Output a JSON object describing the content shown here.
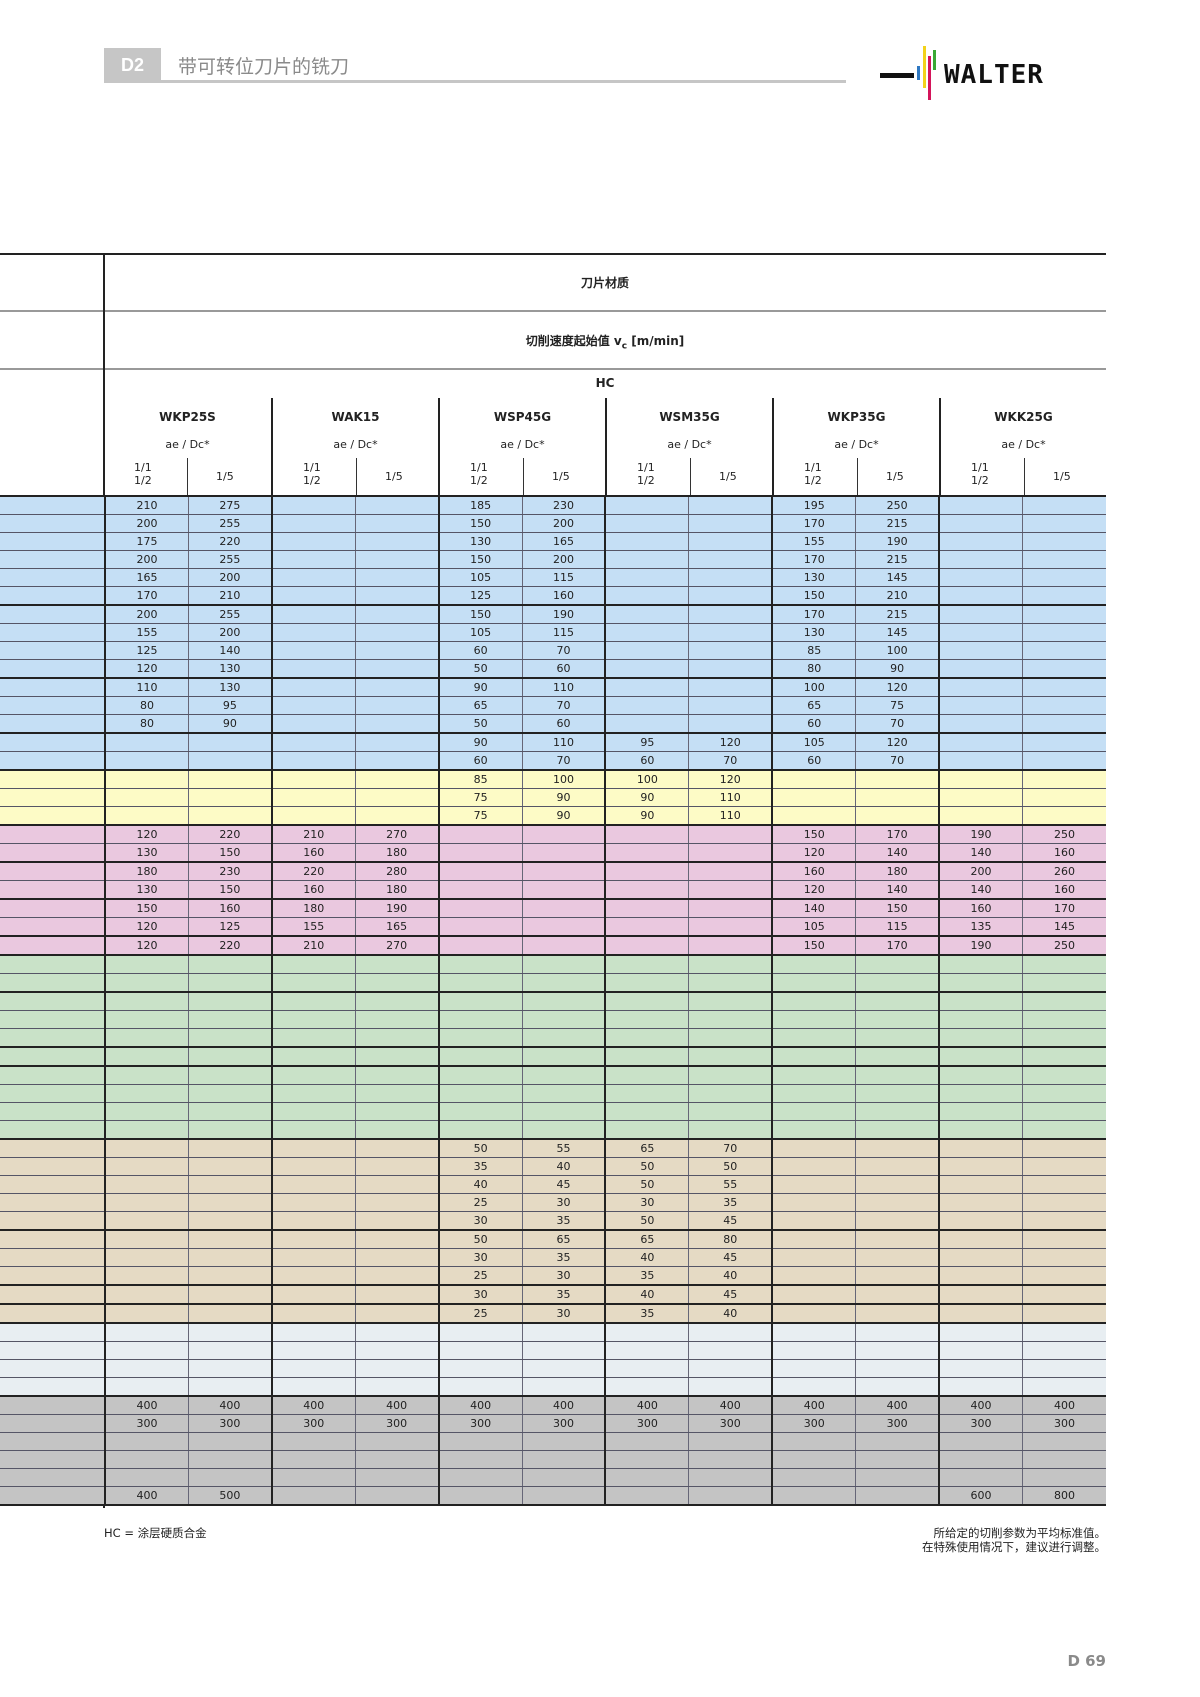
{
  "header": {
    "section": "D2",
    "title": "带可转位刀片的铣刀",
    "logo_text": "WALTER"
  },
  "table": {
    "header_material": "刀片材质",
    "header_speed": "切削速度起始值 vc [m/min]",
    "header_speed_main": "切削速度起始值 v",
    "header_speed_sub": "c",
    "header_speed_unit": " [m/min]",
    "hc": "HC",
    "ratio_label": "ae / Dc*",
    "sub_col_1": [
      "1/1",
      "1/2"
    ],
    "sub_col_2": "1/5",
    "grades": [
      "WKP25S",
      "WAK15",
      "WSP45G",
      "WSM35G",
      "WKP35G",
      "WKK25G"
    ],
    "colors": {
      "blue": "#c5dff5",
      "yellow": "#fdfbc6",
      "pink": "#eac8df",
      "green": "#c9e2c8",
      "tan": "#e5dac4",
      "light": "#e8eef2",
      "gray": "#c4c4c4"
    },
    "groups": [
      {
        "color": "blue",
        "rows": [
          [
            "210",
            "275",
            "",
            "",
            "185",
            "230",
            "",
            "",
            "195",
            "250",
            "",
            ""
          ],
          [
            "200",
            "255",
            "",
            "",
            "150",
            "200",
            "",
            "",
            "170",
            "215",
            "",
            ""
          ],
          [
            "175",
            "220",
            "",
            "",
            "130",
            "165",
            "",
            "",
            "155",
            "190",
            "",
            ""
          ],
          [
            "200",
            "255",
            "",
            "",
            "150",
            "200",
            "",
            "",
            "170",
            "215",
            "",
            ""
          ],
          [
            "165",
            "200",
            "",
            "",
            "105",
            "115",
            "",
            "",
            "130",
            "145",
            "",
            ""
          ],
          [
            "170",
            "210",
            "",
            "",
            "125",
            "160",
            "",
            "",
            "150",
            "210",
            "",
            ""
          ],
          [
            "200",
            "255",
            "",
            "",
            "150",
            "190",
            "",
            "",
            "170",
            "215",
            "",
            ""
          ],
          [
            "155",
            "200",
            "",
            "",
            "105",
            "115",
            "",
            "",
            "130",
            "145",
            "",
            ""
          ],
          [
            "125",
            "140",
            "",
            "",
            "60",
            "70",
            "",
            "",
            "85",
            "100",
            "",
            ""
          ],
          [
            "120",
            "130",
            "",
            "",
            "50",
            "60",
            "",
            "",
            "80",
            "90",
            "",
            ""
          ],
          [
            "110",
            "130",
            "",
            "",
            "90",
            "110",
            "",
            "",
            "100",
            "120",
            "",
            ""
          ],
          [
            "80",
            "95",
            "",
            "",
            "65",
            "70",
            "",
            "",
            "65",
            "75",
            "",
            ""
          ],
          [
            "80",
            "90",
            "",
            "",
            "50",
            "60",
            "",
            "",
            "60",
            "70",
            "",
            ""
          ],
          [
            "",
            "",
            "",
            "",
            "90",
            "110",
            "95",
            "120",
            "105",
            "120",
            "",
            ""
          ],
          [
            "",
            "",
            "",
            "",
            "60",
            "70",
            "60",
            "70",
            "60",
            "70",
            "",
            ""
          ]
        ]
      },
      {
        "color": "yellow",
        "rows": [
          [
            "",
            "",
            "",
            "",
            "85",
            "100",
            "100",
            "120",
            "",
            "",
            "",
            ""
          ],
          [
            "",
            "",
            "",
            "",
            "75",
            "90",
            "90",
            "110",
            "",
            "",
            "",
            ""
          ],
          [
            "",
            "",
            "",
            "",
            "75",
            "90",
            "90",
            "110",
            "",
            "",
            "",
            ""
          ]
        ]
      },
      {
        "color": "pink",
        "rows": [
          [
            "120",
            "220",
            "210",
            "270",
            "",
            "",
            "",
            "",
            "150",
            "170",
            "190",
            "250"
          ],
          [
            "130",
            "150",
            "160",
            "180",
            "",
            "",
            "",
            "",
            "120",
            "140",
            "140",
            "160"
          ],
          [
            "180",
            "230",
            "220",
            "280",
            "",
            "",
            "",
            "",
            "160",
            "180",
            "200",
            "260"
          ],
          [
            "130",
            "150",
            "160",
            "180",
            "",
            "",
            "",
            "",
            "120",
            "140",
            "140",
            "160"
          ],
          [
            "150",
            "160",
            "180",
            "190",
            "",
            "",
            "",
            "",
            "140",
            "150",
            "160",
            "170"
          ],
          [
            "120",
            "125",
            "155",
            "165",
            "",
            "",
            "",
            "",
            "105",
            "115",
            "135",
            "145"
          ],
          [
            "120",
            "220",
            "210",
            "270",
            "",
            "",
            "",
            "",
            "150",
            "170",
            "190",
            "250"
          ]
        ]
      },
      {
        "color": "green",
        "rows": [
          [
            "",
            "",
            "",
            "",
            "",
            "",
            "",
            "",
            "",
            "",
            "",
            ""
          ],
          [
            "",
            "",
            "",
            "",
            "",
            "",
            "",
            "",
            "",
            "",
            "",
            ""
          ],
          [
            "",
            "",
            "",
            "",
            "",
            "",
            "",
            "",
            "",
            "",
            "",
            ""
          ],
          [
            "",
            "",
            "",
            "",
            "",
            "",
            "",
            "",
            "",
            "",
            "",
            ""
          ],
          [
            "",
            "",
            "",
            "",
            "",
            "",
            "",
            "",
            "",
            "",
            "",
            ""
          ],
          [
            "",
            "",
            "",
            "",
            "",
            "",
            "",
            "",
            "",
            "",
            "",
            ""
          ],
          [
            "",
            "",
            "",
            "",
            "",
            "",
            "",
            "",
            "",
            "",
            "",
            ""
          ],
          [
            "",
            "",
            "",
            "",
            "",
            "",
            "",
            "",
            "",
            "",
            "",
            ""
          ],
          [
            "",
            "",
            "",
            "",
            "",
            "",
            "",
            "",
            "",
            "",
            "",
            ""
          ],
          [
            "",
            "",
            "",
            "",
            "",
            "",
            "",
            "",
            "",
            "",
            "",
            ""
          ]
        ]
      },
      {
        "color": "tan",
        "rows": [
          [
            "",
            "",
            "",
            "",
            "50",
            "55",
            "65",
            "70",
            "",
            "",
            "",
            ""
          ],
          [
            "",
            "",
            "",
            "",
            "35",
            "40",
            "50",
            "50",
            "",
            "",
            "",
            ""
          ],
          [
            "",
            "",
            "",
            "",
            "40",
            "45",
            "50",
            "55",
            "",
            "",
            "",
            ""
          ],
          [
            "",
            "",
            "",
            "",
            "25",
            "30",
            "30",
            "35",
            "",
            "",
            "",
            ""
          ],
          [
            "",
            "",
            "",
            "",
            "30",
            "35",
            "50",
            "45",
            "",
            "",
            "",
            ""
          ],
          [
            "",
            "",
            "",
            "",
            "50",
            "65",
            "65",
            "80",
            "",
            "",
            "",
            ""
          ],
          [
            "",
            "",
            "",
            "",
            "30",
            "35",
            "40",
            "45",
            "",
            "",
            "",
            ""
          ],
          [
            "",
            "",
            "",
            "",
            "25",
            "30",
            "35",
            "40",
            "",
            "",
            "",
            ""
          ],
          [
            "",
            "",
            "",
            "",
            "30",
            "35",
            "40",
            "45",
            "",
            "",
            "",
            ""
          ],
          [
            "",
            "",
            "",
            "",
            "25",
            "30",
            "35",
            "40",
            "",
            "",
            "",
            ""
          ]
        ]
      },
      {
        "color": "light",
        "rows": [
          [
            "",
            "",
            "",
            "",
            "",
            "",
            "",
            "",
            "",
            "",
            "",
            ""
          ],
          [
            "",
            "",
            "",
            "",
            "",
            "",
            "",
            "",
            "",
            "",
            "",
            ""
          ],
          [
            "",
            "",
            "",
            "",
            "",
            "",
            "",
            "",
            "",
            "",
            "",
            ""
          ],
          [
            "",
            "",
            "",
            "",
            "",
            "",
            "",
            "",
            "",
            "",
            "",
            ""
          ]
        ]
      },
      {
        "color": "gray",
        "rows": [
          [
            "400",
            "400",
            "400",
            "400",
            "400",
            "400",
            "400",
            "400",
            "400",
            "400",
            "400",
            "400"
          ],
          [
            "300",
            "300",
            "300",
            "300",
            "300",
            "300",
            "300",
            "300",
            "300",
            "300",
            "300",
            "300"
          ],
          [
            "",
            "",
            "",
            "",
            "",
            "",
            "",
            "",
            "",
            "",
            "",
            ""
          ],
          [
            "",
            "",
            "",
            "",
            "",
            "",
            "",
            "",
            "",
            "",
            "",
            ""
          ],
          [
            "",
            "",
            "",
            "",
            "",
            "",
            "",
            "",
            "",
            "",
            "",
            ""
          ],
          [
            "400",
            "500",
            "",
            "",
            "",
            "",
            "",
            "",
            "",
            "",
            "600",
            "800"
          ]
        ]
      }
    ]
  },
  "footer": {
    "legend": "HC = 涂层硬质合金",
    "note_line1": "所给定的切削参数为平均标准值。",
    "note_line2": "在特殊使用情况下，建议进行调整。",
    "page": "D 69"
  }
}
